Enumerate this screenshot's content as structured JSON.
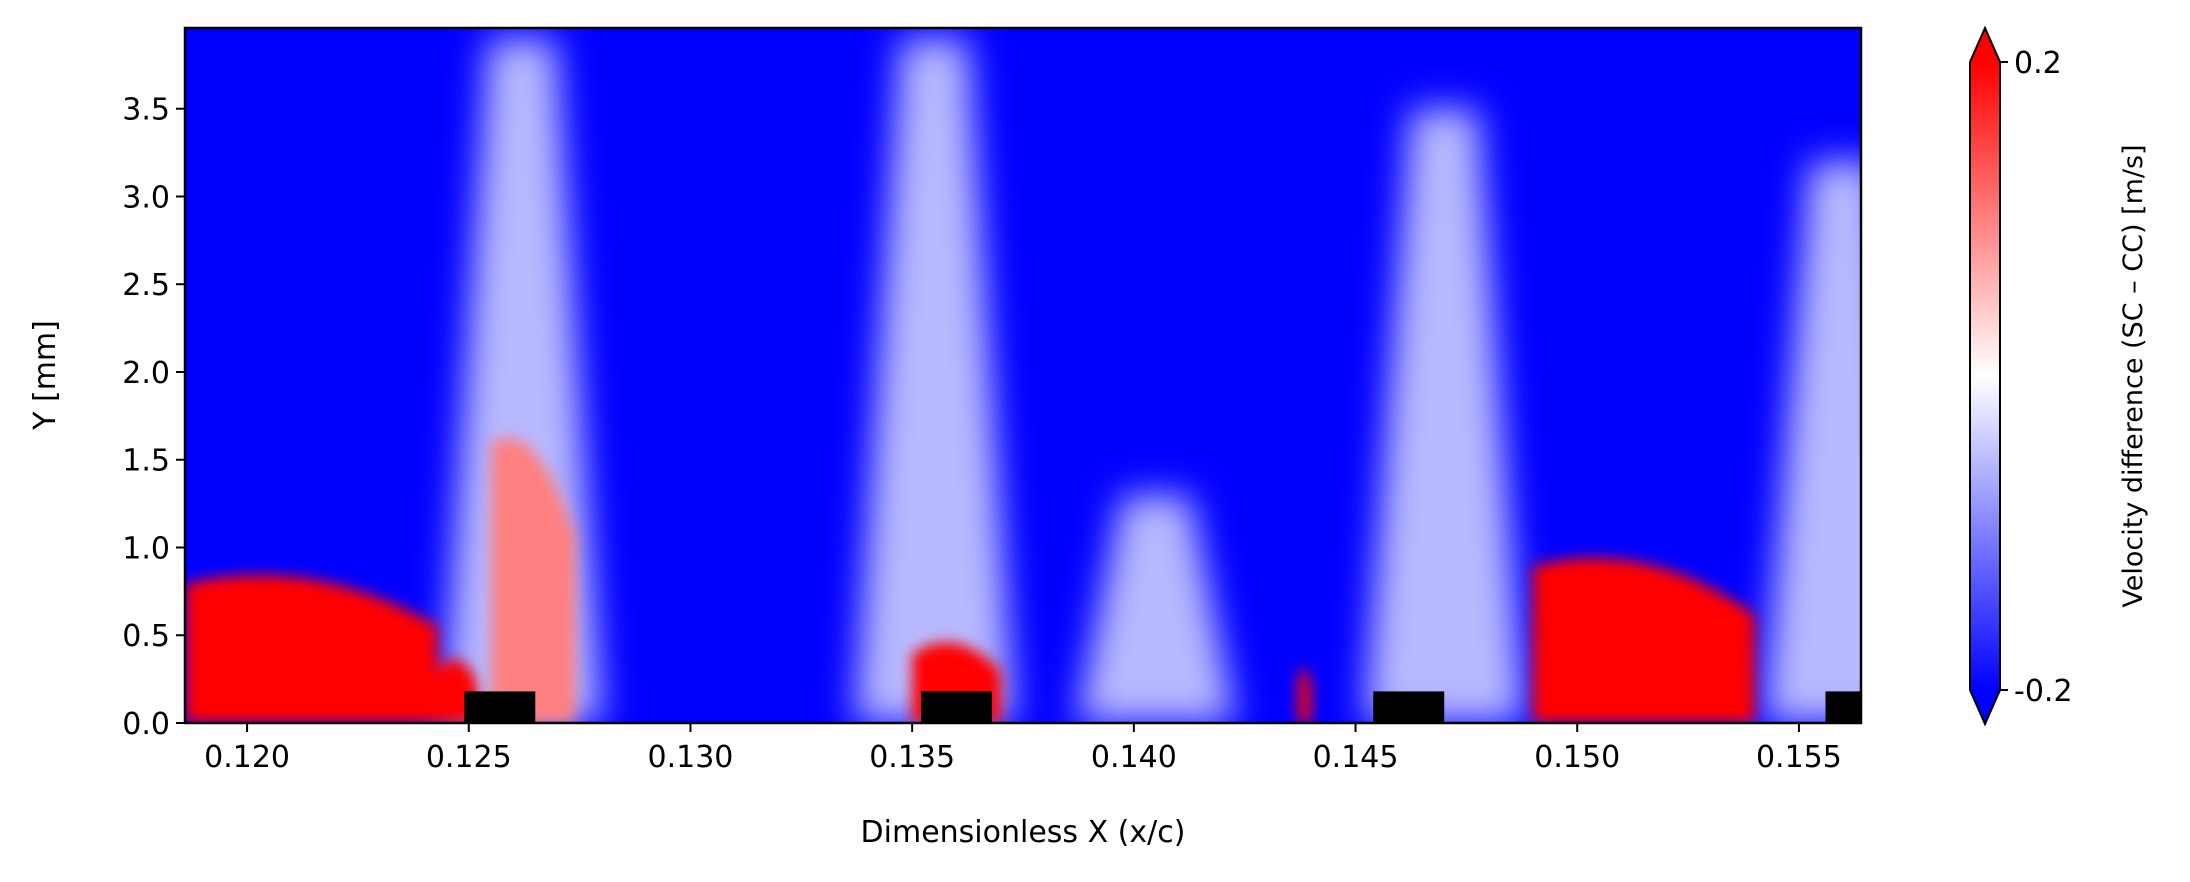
{
  "chart_data": {
    "type": "heatmap",
    "xlabel": "Dimensionless X (x/c)",
    "ylabel": "Y [mm]",
    "xlim": [
      0.1186,
      0.1564
    ],
    "ylim": [
      0.0,
      3.96
    ],
    "x_ticks": [
      "0.120",
      "0.125",
      "0.130",
      "0.135",
      "0.140",
      "0.145",
      "0.150",
      "0.155"
    ],
    "y_ticks": [
      "0.0",
      "0.5",
      "1.0",
      "1.5",
      "2.0",
      "2.5",
      "3.0",
      "3.5"
    ],
    "colormap": "bwr",
    "colorbar": {
      "label": "Velocity difference (SC – CC) [m/s]",
      "min": -0.2,
      "max": 0.2,
      "tick_labels": [
        "0.2",
        "-0.2"
      ],
      "extend": "both"
    },
    "background_value": -0.2,
    "positive_regions": [
      {
        "x": [
          0.1186,
          0.1243
        ],
        "y_top": 0.85,
        "value": 0.2
      },
      {
        "x": [
          0.1243,
          0.1252
        ],
        "y_top": 0.35,
        "value": 0.2
      },
      {
        "x": [
          0.1255,
          0.1274
        ],
        "y_top": 1.65,
        "value": 0.1
      },
      {
        "x": [
          0.135,
          0.137
        ],
        "y_top": 0.45,
        "value": 0.2
      },
      {
        "x": [
          0.1437,
          0.144
        ],
        "y_top": 0.3,
        "value": 0.2
      },
      {
        "x": [
          0.149,
          0.154
        ],
        "y_top": 0.95,
        "value": 0.2
      }
    ],
    "neutral_plumes": [
      {
        "x_center": 0.1262,
        "y_top": 3.9
      },
      {
        "x_center": 0.1355,
        "y_top": 3.9
      },
      {
        "x_center": 0.1405,
        "y_top": 1.3
      },
      {
        "x_center": 0.147,
        "y_top": 3.5
      },
      {
        "x_center": 0.156,
        "y_top": 3.2
      }
    ],
    "elements": [
      {
        "x": [
          0.1249,
          0.1265
        ],
        "height_mm": 0.18
      },
      {
        "x": [
          0.1352,
          0.1368
        ],
        "height_mm": 0.18
      },
      {
        "x": [
          0.1454,
          0.147
        ],
        "height_mm": 0.18
      },
      {
        "x": [
          0.1556,
          0.1572
        ],
        "height_mm": 0.18
      }
    ],
    "colors": {
      "positive": "#ff0000",
      "neutral": "#ffffff",
      "negative": "#0000ff",
      "element": "#000000"
    }
  }
}
